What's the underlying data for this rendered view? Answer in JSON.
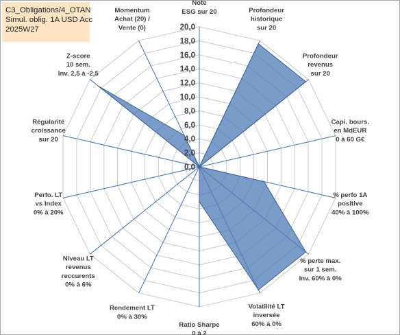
{
  "info_box": {
    "line1": "C3_Obligations/4_OTAN",
    "line2": "Simul. oblig. 1A USD Acc",
    "line3": "2025W27"
  },
  "colors": {
    "fill": "#4f7bb5",
    "fill_opacity": 0.75,
    "stroke": "#3b5f94",
    "grid": "#c8c8c8",
    "spoke": "#3f6fb0",
    "info_bg": "#fce4c4"
  },
  "chart_data": {
    "type": "radar",
    "rmin": 0,
    "rmax": 20,
    "tick_step": 2,
    "tick_labels": [
      "0,0",
      "2,0",
      "4,0",
      "6,0",
      "8,0",
      "10,0",
      "12,0",
      "14,0",
      "16,0",
      "18,0",
      "20,0"
    ],
    "categories": [
      [
        "Note",
        "ESG sur 20"
      ],
      [
        "Profondeur",
        "historique",
        "sur 20"
      ],
      [
        "Profondeur",
        "revenus",
        "sur 20"
      ],
      [
        "Capi. bours.",
        "en MdEUR",
        "0 à 60 G€"
      ],
      [
        "% perfo 1A",
        "positive",
        "40% à 100%"
      ],
      [
        "% perte max.",
        "sur 1 sem.",
        "Inv. 60% à 0%"
      ],
      [
        "Volatilité LT",
        "inversée",
        "60% à 0%"
      ],
      [
        "Ratio Sharpe",
        "0 à 2"
      ],
      [
        "Rendement LT",
        "0% à 30%"
      ],
      [
        "Niveau LT",
        "revenus",
        "reccurents",
        "0% à 6%"
      ],
      [
        "Perfo. LT",
        "vs Index",
        "0% à 20%"
      ],
      [
        "Régularité",
        "croissance",
        "sur 20"
      ],
      [
        "Z-score",
        "10 sem.",
        "Inv. 2,5 à -2,5"
      ],
      [
        "Momentum",
        "Achat (20) /",
        "Vente (0)"
      ]
    ],
    "values": [
      0,
      19.5,
      19.5,
      0,
      9.5,
      19.5,
      19.5,
      5,
      0,
      0,
      0,
      0,
      18.5,
      5
    ],
    "grid": true,
    "legend": "none"
  }
}
